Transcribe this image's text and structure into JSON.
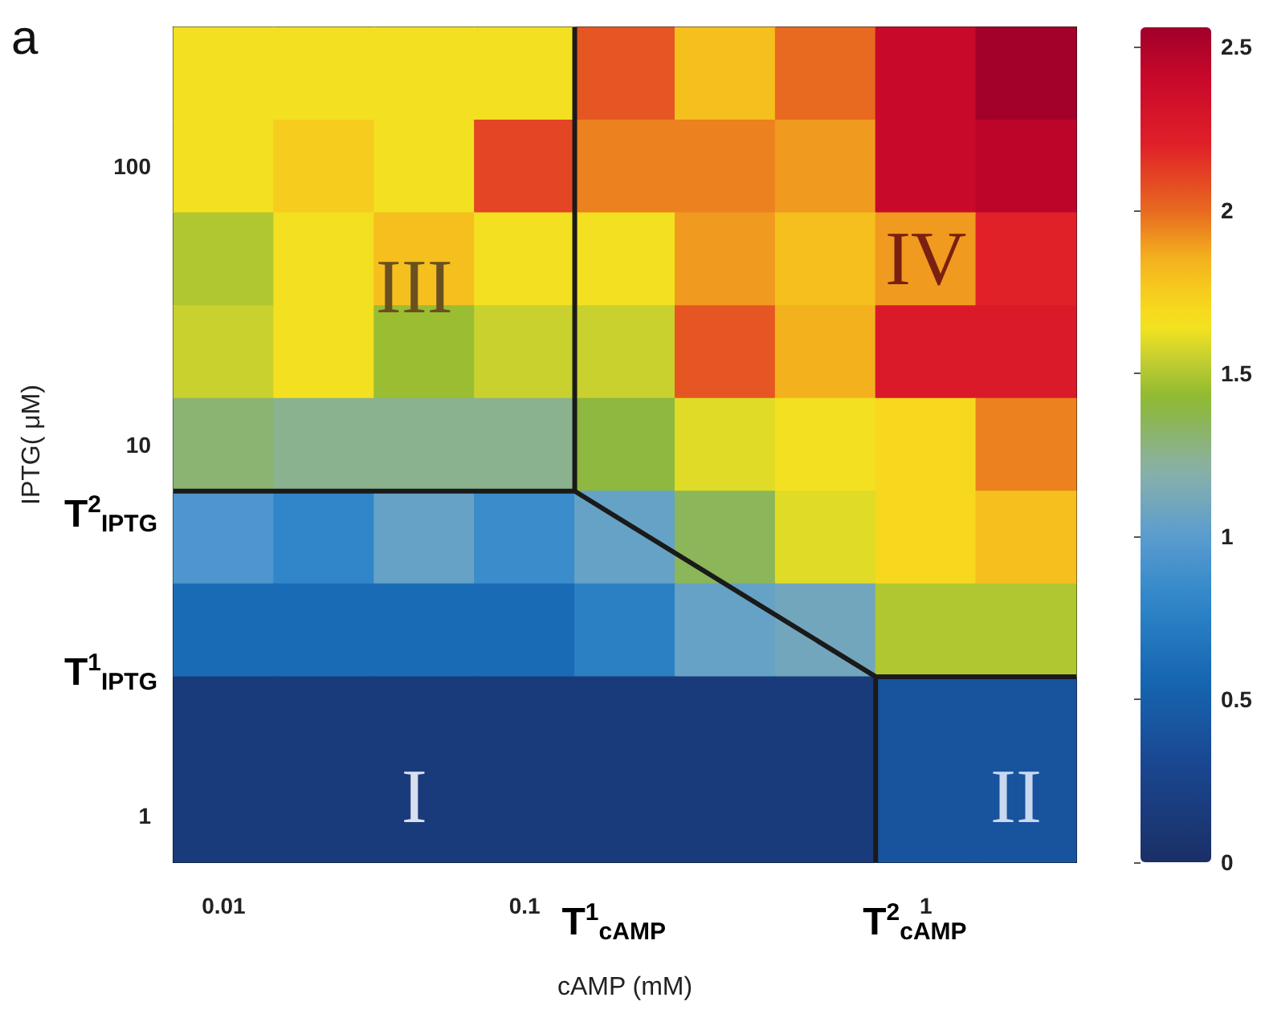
{
  "chart_data": {
    "type": "heatmap",
    "title": "a",
    "xlabel": "cAMP (mM)",
    "ylabel": "IPTG( μM)",
    "categories": [
      "0.01",
      null,
      null,
      "0.1",
      null,
      null,
      null,
      "1",
      null
    ],
    "y_categories": [
      null,
      "100",
      null,
      null,
      "10",
      null,
      null,
      null,
      "1"
    ],
    "cells": [
      [
        1.65,
        1.65,
        1.65,
        1.65,
        2.05,
        1.8,
        2.0,
        2.4,
        2.55
      ],
      [
        1.65,
        1.75,
        1.65,
        2.1,
        1.95,
        1.95,
        1.9,
        2.4,
        2.45
      ],
      [
        1.5,
        1.65,
        1.8,
        1.65,
        1.65,
        1.9,
        1.8,
        1.9,
        2.2
      ],
      [
        1.55,
        1.65,
        1.45,
        1.55,
        1.55,
        2.05,
        1.85,
        2.25,
        2.25
      ],
      [
        1.3,
        1.25,
        1.25,
        1.25,
        1.4,
        1.6,
        1.65,
        1.7,
        1.95
      ],
      [
        0.95,
        0.8,
        1.05,
        0.85,
        1.05,
        1.35,
        1.6,
        1.7,
        1.8
      ],
      [
        0.6,
        0.6,
        0.6,
        0.6,
        0.75,
        1.05,
        1.1,
        1.5,
        1.5
      ],
      [
        0.15,
        0.15,
        0.15,
        0.15,
        0.15,
        0.15,
        0.15,
        0.4,
        0.4
      ],
      [
        0.15,
        0.15,
        0.15,
        0.15,
        0.15,
        0.15,
        0.15,
        0.4,
        0.4
      ]
    ],
    "clim": [
      0,
      2.56
    ],
    "cticks": [
      0,
      0.5,
      1,
      1.5,
      2,
      2.5
    ],
    "annotations": [
      "I",
      "II",
      "III",
      "IV",
      "T$^{1}$$_{cAMP}$",
      "T$^{2}$$_{cAMP}$",
      "T$^{1}$$_{IPTG}$",
      "T$^{2}$$_{IPTG}$"
    ]
  }
}
